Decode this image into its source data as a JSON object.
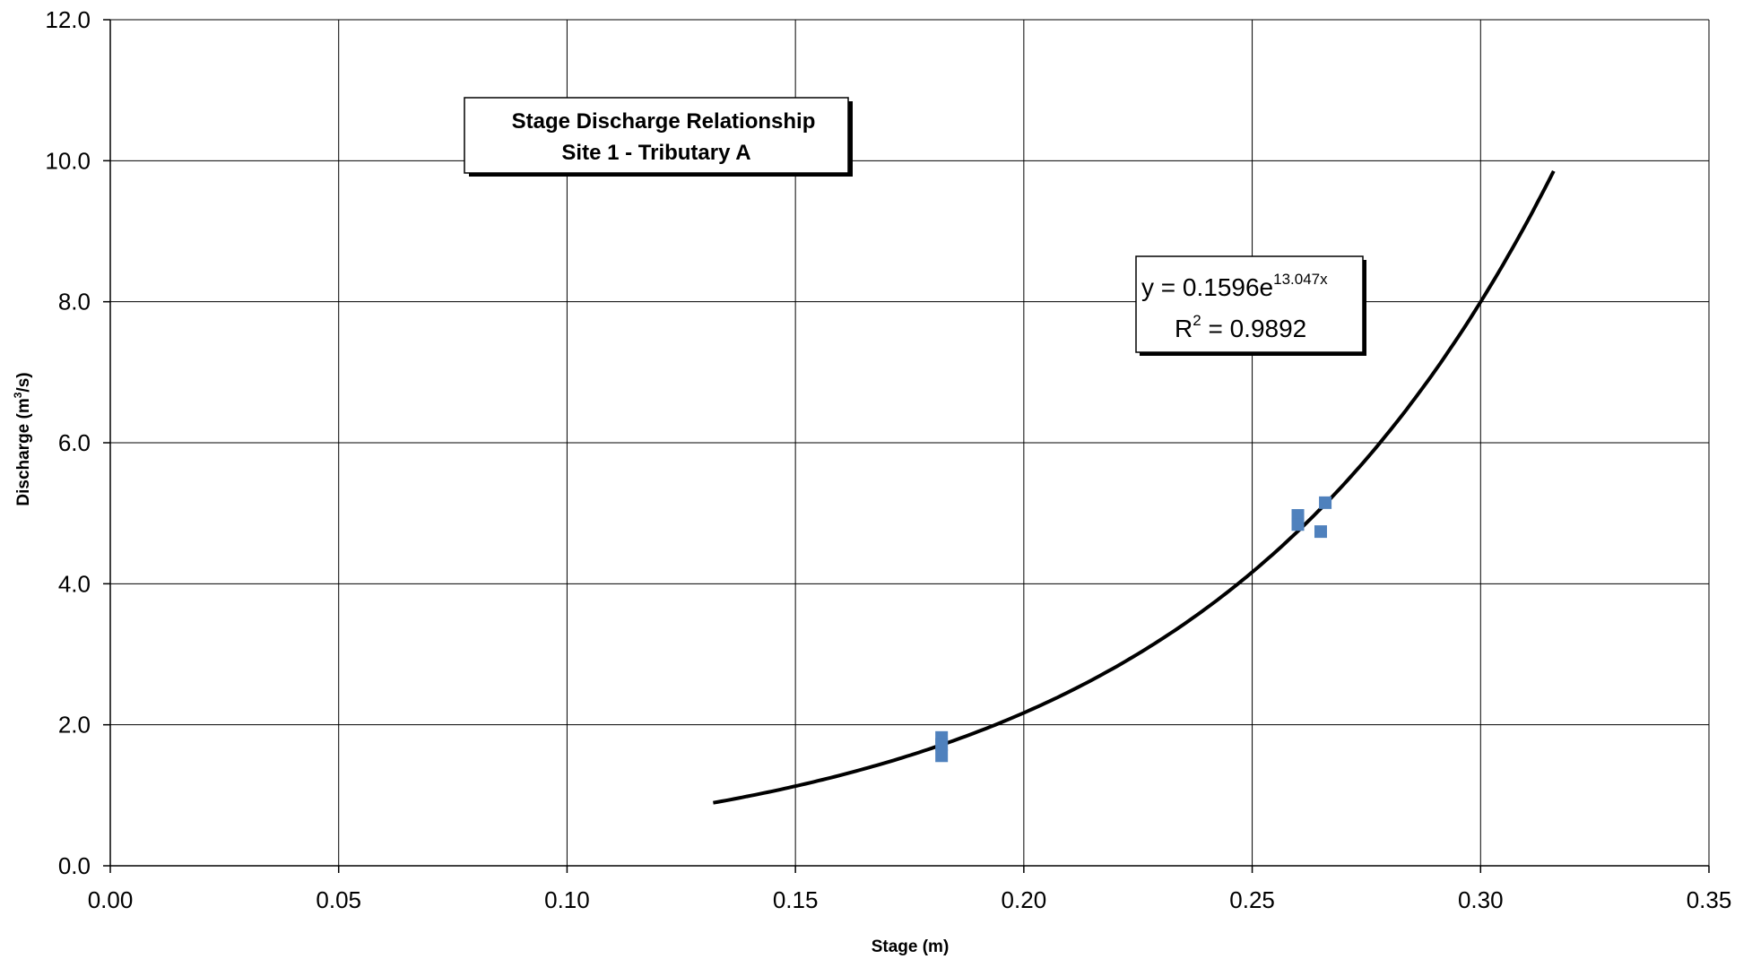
{
  "chart_data": {
    "type": "scatter",
    "title": "Stage Discharge Relationship",
    "subtitle": "Site 1 - Tributary A",
    "xlabel": "Stage (m)",
    "ylabel": {
      "prefix": "Discharge  (m",
      "sup": "3",
      "suffix": "/s)"
    },
    "xlim": [
      0,
      0.35
    ],
    "ylim": [
      0,
      12
    ],
    "xticks": [
      "0.00",
      "0.05",
      "0.10",
      "0.15",
      "0.20",
      "0.25",
      "0.30",
      "0.35"
    ],
    "yticks": [
      "0.0",
      "2.0",
      "4.0",
      "6.0",
      "8.0",
      "10.0",
      "12.0"
    ],
    "xtick_values": [
      0,
      0.05,
      0.1,
      0.15,
      0.2,
      0.25,
      0.3,
      0.35
    ],
    "ytick_values": [
      0,
      2,
      4,
      6,
      8,
      10,
      12
    ],
    "grid": true,
    "series": [
      {
        "marker": "square",
        "color": "#4f81bd",
        "points": [
          {
            "x": 0.182,
            "y": 1.82
          },
          {
            "x": 0.182,
            "y": 1.72
          },
          {
            "x": 0.182,
            "y": 1.56
          },
          {
            "x": 0.26,
            "y": 4.97
          },
          {
            "x": 0.26,
            "y": 4.84
          },
          {
            "x": 0.265,
            "y": 4.74
          },
          {
            "x": 0.266,
            "y": 5.15
          }
        ]
      }
    ],
    "trendline": {
      "type": "exponential",
      "a": 0.1596,
      "b": 13.047,
      "x_range": [
        0.132,
        0.316
      ],
      "color": "#000000",
      "equation": {
        "prefix": "y = 0.1596e",
        "sup": "13.047x"
      },
      "r2": {
        "prefix": "R",
        "sup": "2",
        "suffix": " = 0.9892"
      }
    }
  }
}
